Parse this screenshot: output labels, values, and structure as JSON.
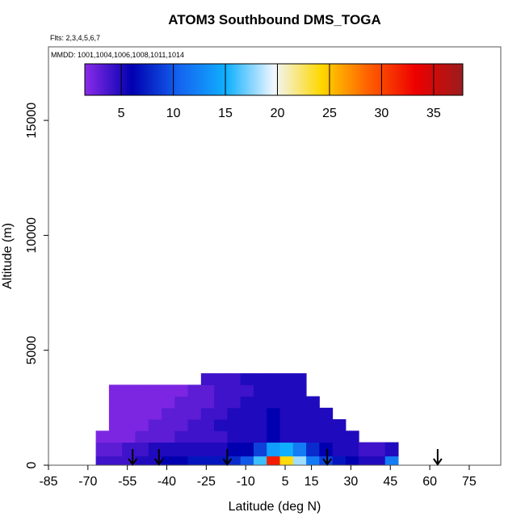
{
  "chart_data": {
    "type": "heatmap",
    "title": "ATOM3 Southbound DMS_TOGA",
    "subtitle": "Flts: 2,3,4,5,6,7",
    "annotation": "MMDD: 1001,1004,1006,1008,1011,1014",
    "xlabel": "Latitude (deg N)",
    "ylabel": "Altitude (m)",
    "xlim": [
      -85,
      87
    ],
    "ylim": [
      0,
      18200
    ],
    "xticks": [
      -85,
      -70,
      -55,
      -40,
      -25,
      -10,
      5,
      15,
      30,
      45,
      60,
      75
    ],
    "yticks": [
      0,
      5000,
      10000,
      15000
    ],
    "x_edges": [
      -67,
      -62,
      -57,
      -52,
      -47,
      -42,
      -37,
      -32,
      -27,
      -22,
      -17,
      -12,
      -7,
      -2,
      3,
      8,
      13,
      18,
      23,
      28,
      33,
      38,
      43,
      48
    ],
    "y_edges": [
      0,
      400,
      1000,
      1500,
      2000,
      2500,
      3000,
      3500,
      4000
    ],
    "values": [
      [
        4,
        4,
        4,
        5,
        5,
        6,
        6,
        7,
        7,
        7,
        8,
        10,
        16,
        32,
        24,
        18,
        12,
        9,
        7,
        6,
        5,
        5,
        12
      ],
      [
        3,
        3,
        4,
        4,
        5,
        5,
        5,
        5,
        5,
        5,
        6,
        6,
        9,
        14,
        15,
        12,
        8,
        6,
        5,
        5,
        4,
        4,
        5
      ],
      [
        2,
        2,
        2,
        3,
        3,
        3,
        4,
        4,
        4,
        4,
        5,
        5,
        5,
        6,
        5,
        5,
        5,
        5,
        5,
        5,
        null,
        null,
        null
      ],
      [
        null,
        2,
        2,
        2,
        3,
        3,
        3,
        4,
        4,
        5,
        5,
        5,
        5,
        6,
        5,
        5,
        5,
        5,
        5,
        null,
        null,
        null,
        null
      ],
      [
        null,
        2,
        2,
        2,
        2,
        3,
        3,
        3,
        4,
        4,
        5,
        5,
        5,
        6,
        5,
        5,
        5,
        5,
        null,
        null,
        null,
        null,
        null
      ],
      [
        null,
        2,
        2,
        2,
        2,
        2,
        3,
        3,
        3,
        4,
        4,
        5,
        5,
        5,
        5,
        5,
        5,
        null,
        null,
        null,
        null,
        null,
        null
      ],
      [
        null,
        2,
        2,
        2,
        2,
        2,
        2,
        3,
        3,
        4,
        4,
        4,
        5,
        5,
        5,
        5,
        null,
        null,
        null,
        null,
        null,
        null,
        null
      ],
      [
        null,
        null,
        null,
        null,
        null,
        null,
        null,
        null,
        4,
        4,
        4,
        5,
        5,
        5,
        5,
        5,
        null,
        null,
        null,
        null,
        null,
        null,
        null
      ]
    ],
    "clim": [
      1.5,
      37.8
    ],
    "cticks": [
      5,
      10,
      15,
      20,
      25,
      30,
      35
    ],
    "colorscale": [
      "#8b2be8",
      "#0000b0",
      "#1464f0",
      "#10b0ff",
      "#f0f6ff",
      "#ffd800",
      "#ff6000",
      "#ee0000",
      "#9b1c1c"
    ],
    "arrows": [
      -53,
      -43,
      -17,
      21,
      63
    ]
  }
}
